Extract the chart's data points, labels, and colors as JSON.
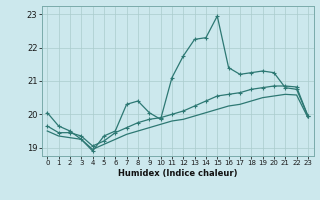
{
  "bg_color": "#cce8ed",
  "grid_color": "#aacccc",
  "line_color": "#2d7873",
  "xlabel": "Humidex (Indice chaleur)",
  "xlim": [
    -0.5,
    23.5
  ],
  "ylim": [
    18.75,
    23.25
  ],
  "yticks": [
    19,
    20,
    21,
    22,
    23
  ],
  "xticks": [
    0,
    1,
    2,
    3,
    4,
    5,
    6,
    7,
    8,
    9,
    10,
    11,
    12,
    13,
    14,
    15,
    16,
    17,
    18,
    19,
    20,
    21,
    22,
    23
  ],
  "line1_x": [
    0,
    1,
    2,
    3,
    4,
    5,
    6,
    7,
    8,
    9,
    10,
    11,
    12,
    13,
    14,
    15,
    16,
    17,
    18,
    19,
    20,
    21,
    22,
    23
  ],
  "line1_y": [
    20.05,
    19.65,
    19.5,
    19.25,
    18.9,
    19.35,
    19.5,
    20.3,
    20.4,
    20.05,
    19.85,
    21.1,
    21.75,
    22.25,
    22.3,
    22.95,
    21.4,
    21.2,
    21.25,
    21.3,
    21.25,
    20.8,
    20.75,
    19.95
  ],
  "line2_x": [
    0,
    1,
    2,
    3,
    4,
    5,
    6,
    7,
    8,
    9,
    10,
    11,
    12,
    13,
    14,
    15,
    16,
    17,
    18,
    19,
    20,
    21,
    22,
    23
  ],
  "line2_y": [
    19.65,
    19.45,
    19.45,
    19.35,
    19.05,
    19.2,
    19.45,
    19.6,
    19.75,
    19.85,
    19.9,
    20.0,
    20.1,
    20.25,
    20.4,
    20.55,
    20.6,
    20.65,
    20.75,
    20.8,
    20.85,
    20.85,
    20.82,
    19.95
  ],
  "line3_x": [
    0,
    1,
    2,
    3,
    4,
    5,
    6,
    7,
    8,
    9,
    10,
    11,
    12,
    13,
    14,
    15,
    16,
    17,
    18,
    19,
    20,
    21,
    22,
    23
  ],
  "line3_y": [
    19.5,
    19.35,
    19.3,
    19.25,
    18.95,
    19.1,
    19.25,
    19.4,
    19.5,
    19.6,
    19.7,
    19.8,
    19.85,
    19.95,
    20.05,
    20.15,
    20.25,
    20.3,
    20.4,
    20.5,
    20.55,
    20.6,
    20.58,
    19.9
  ],
  "marker_style": "+",
  "lw1": 0.9,
  "lw2": 0.9,
  "lw3": 0.9,
  "ms": 3.0
}
